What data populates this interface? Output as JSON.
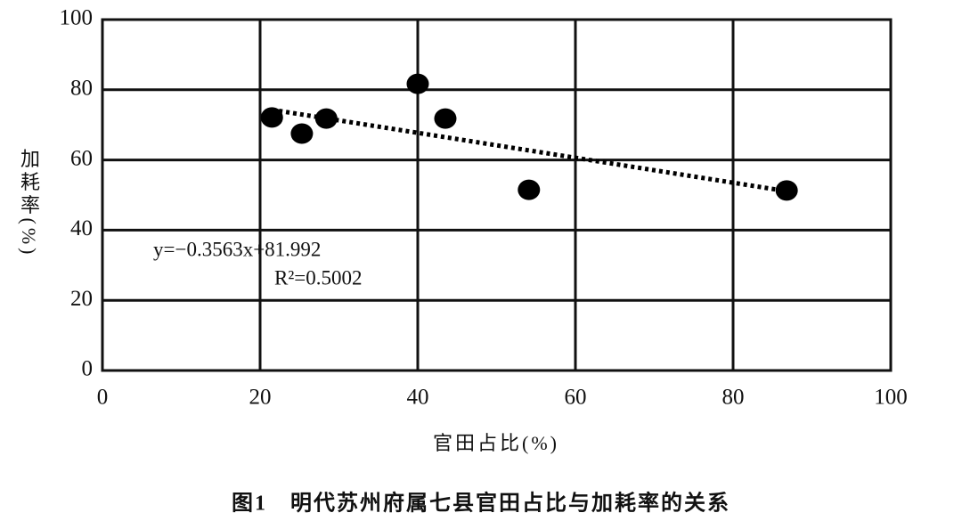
{
  "chart_data": {
    "type": "scatter",
    "x_label": "官田占比(%)",
    "y_label": "加耗率(%)",
    "caption": "图1　明代苏州府属七县官田占比与加耗率的关系",
    "x": [
      21.5,
      25.3,
      28.4,
      40,
      43.5,
      54.1,
      86.8
    ],
    "values": [
      72.1,
      67.5,
      71.8,
      81.7,
      71.8,
      51.5,
      51.3
    ],
    "color": "#000000",
    "trendline": {
      "x": [
        21.5,
        86.8
      ],
      "y": [
        74.3,
        51.1
      ],
      "equation": "y=−0.3563x+81.992",
      "r2": "R²=0.5002"
    },
    "xlim": [
      0,
      100
    ],
    "xticks": [
      0,
      20,
      40,
      60,
      80,
      100
    ],
    "ylim": [
      0,
      100
    ],
    "yticks": [
      0,
      20,
      40,
      60,
      80,
      100
    ],
    "grid": true
  }
}
